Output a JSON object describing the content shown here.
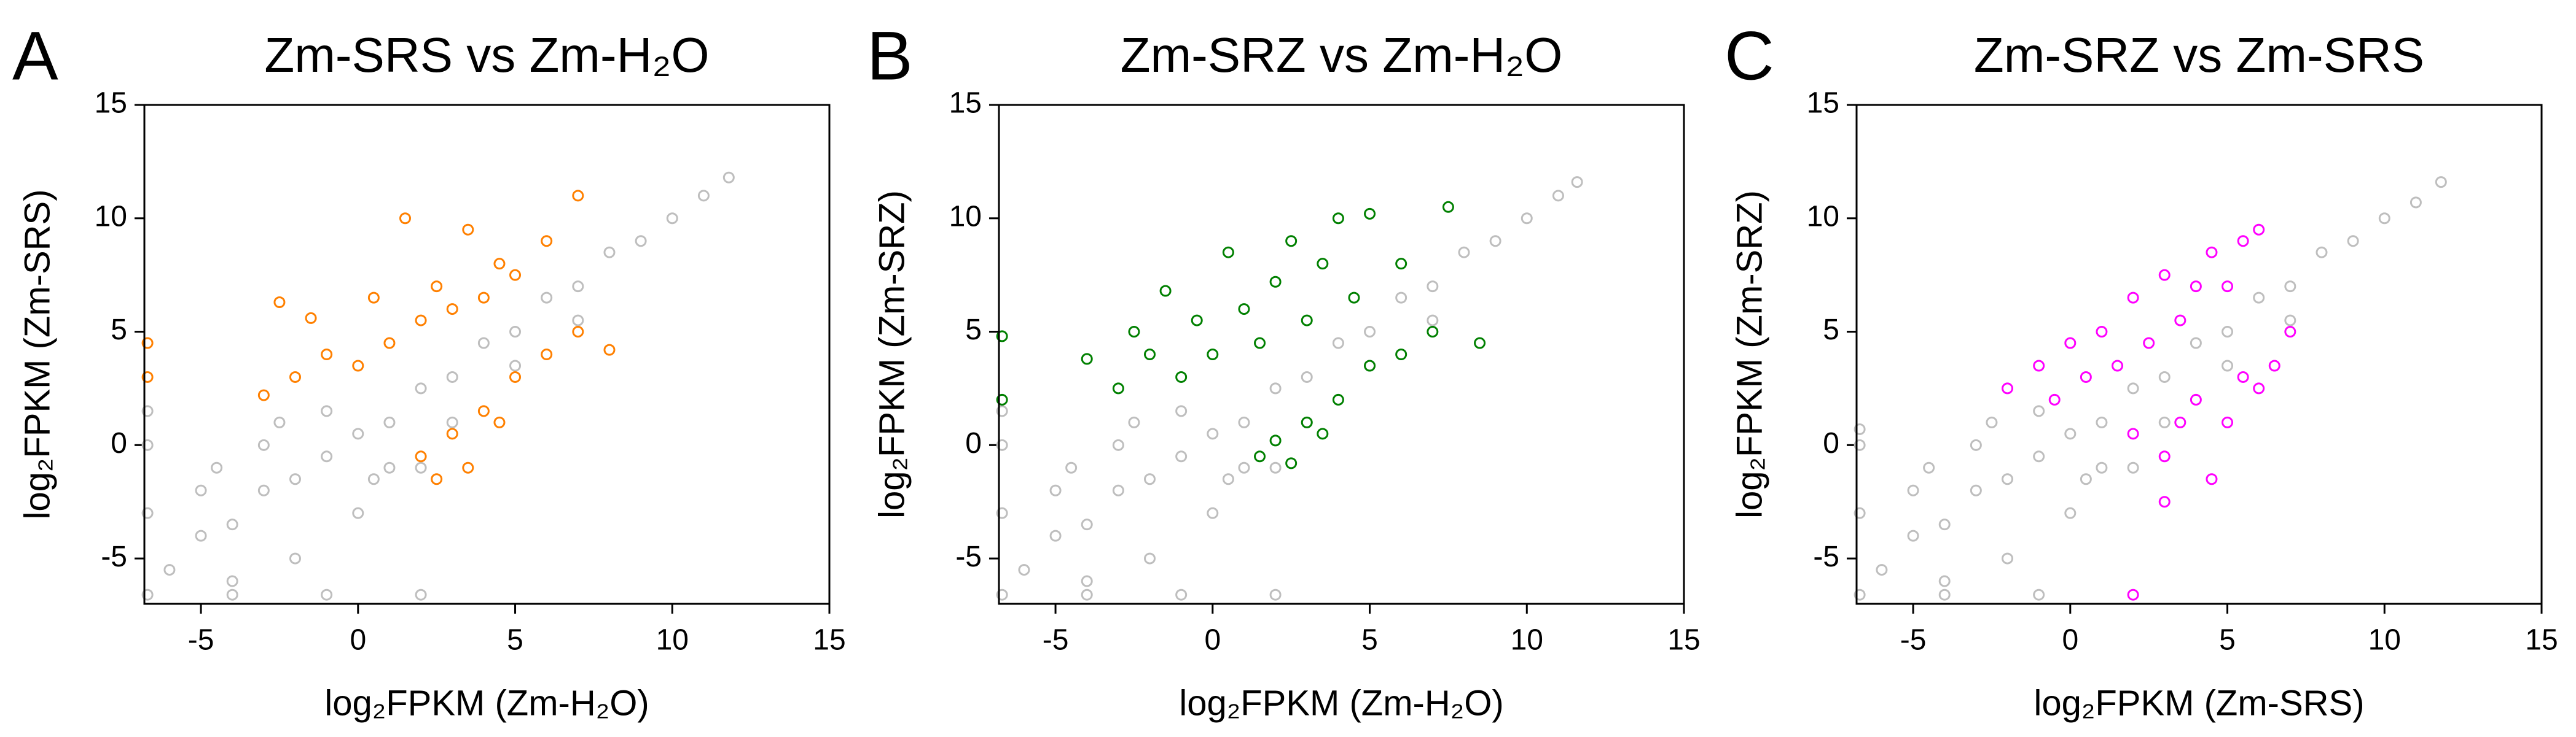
{
  "chart_data": [
    {
      "type": "scatter",
      "panel_label": "A",
      "title": "Zm-SRS vs Zm-H₂O",
      "xlabel": "log₂FPKM (Zm-H₂O)",
      "ylabel": "log₂FPKM (Zm-SRS)",
      "xlim": [
        -6.8,
        15
      ],
      "ylim": [
        -7,
        15
      ],
      "xticks": [
        -5,
        0,
        5,
        10,
        15
      ],
      "yticks": [
        -5,
        0,
        5,
        10,
        15
      ],
      "series": [
        {
          "color": "#bebebe",
          "x": [
            -6,
            -5,
            -4,
            -3,
            -2,
            -1,
            0,
            1,
            2,
            3,
            4,
            5,
            6,
            7,
            8,
            9,
            10,
            11,
            11.8,
            -5,
            -3,
            -1,
            1,
            3,
            -4,
            -2,
            0,
            2,
            -6.7,
            -4,
            -1,
            2,
            -6.7,
            -6.7,
            -6.7,
            5,
            7,
            -4.5,
            -2.5,
            0.5
          ],
          "values": [
            -5.5,
            -4,
            -3.5,
            -2,
            -1.5,
            -0.5,
            0.5,
            1,
            2.5,
            3,
            4.5,
            5,
            6.5,
            7,
            8.5,
            9,
            10,
            11,
            11.8,
            -2,
            0,
            1.5,
            -1,
            1,
            -6,
            -5,
            -3,
            -1,
            -6.6,
            -6.6,
            -6.6,
            -6.6,
            -3,
            0,
            1.5,
            3.5,
            5.5,
            -1,
            1,
            -1.5
          ]
        },
        {
          "color": "#ff8000",
          "x": [
            -3,
            -2,
            -1.5,
            -1,
            0,
            0.5,
            1,
            1.5,
            2,
            2.5,
            3,
            3.5,
            4,
            4.5,
            5,
            6,
            7,
            -6.7,
            -6.7,
            -2.5,
            2,
            3,
            4,
            5,
            6,
            7,
            8,
            3.5,
            2.5,
            4.5
          ],
          "values": [
            2.2,
            3,
            5.6,
            4,
            3.5,
            6.5,
            4.5,
            10,
            5.5,
            7,
            6,
            9.5,
            6.5,
            8,
            7.5,
            9,
            11,
            4.5,
            3,
            6.3,
            -0.5,
            0.5,
            1.5,
            3,
            4,
            5,
            4.2,
            -1,
            -1.5,
            1
          ]
        }
      ]
    },
    {
      "type": "scatter",
      "panel_label": "B",
      "title": "Zm-SRZ vs Zm-H₂O",
      "xlabel": "log₂FPKM (Zm-H₂O)",
      "ylabel": "log₂FPKM (Zm-SRZ)",
      "xlim": [
        -6.8,
        15
      ],
      "ylim": [
        -7,
        15
      ],
      "xticks": [
        -5,
        0,
        5,
        10,
        15
      ],
      "yticks": [
        -5,
        0,
        5,
        10,
        15
      ],
      "series": [
        {
          "color": "#bebebe",
          "x": [
            -6,
            -5,
            -4,
            -3,
            -2,
            -1,
            0,
            1,
            2,
            3,
            4,
            5,
            6,
            7,
            8,
            9,
            10,
            11,
            11.6,
            -5,
            -3,
            -1,
            1,
            3,
            -4,
            -2,
            0,
            2,
            -6.7,
            -4,
            -1,
            2,
            -6.7,
            -6.7,
            -6.7,
            5,
            7,
            -4.5,
            -2.5,
            0.5
          ],
          "values": [
            -5.5,
            -4,
            -3.5,
            -2,
            -1.5,
            -0.5,
            0.5,
            1,
            2.5,
            3,
            4.5,
            5,
            6.5,
            7,
            8.5,
            9,
            10,
            11,
            11.6,
            -2,
            0,
            1.5,
            -1,
            1,
            -6,
            -5,
            -3,
            -1,
            -6.6,
            -6.6,
            -6.6,
            -6.6,
            -3,
            0,
            1.5,
            3.5,
            5.5,
            -1,
            1,
            -1.5
          ]
        },
        {
          "color": "#008000",
          "x": [
            -4,
            -3,
            -2.5,
            -2,
            -1.5,
            -1,
            -0.5,
            0,
            0.5,
            1,
            1.5,
            2,
            2.5,
            3,
            3.5,
            4,
            4.5,
            5,
            6,
            7.5,
            -6.7,
            -6.7,
            1.5,
            2,
            3,
            4,
            5,
            6,
            7,
            8.5,
            2.5,
            3.5
          ],
          "values": [
            3.8,
            2.5,
            5,
            4,
            6.8,
            3,
            5.5,
            4,
            8.5,
            6,
            4.5,
            7.2,
            9,
            5.5,
            8,
            10,
            6.5,
            10.2,
            8,
            10.5,
            4.8,
            2,
            -0.5,
            0.2,
            1,
            2,
            3.5,
            4,
            5,
            4.5,
            -0.8,
            0.5
          ]
        }
      ]
    },
    {
      "type": "scatter",
      "panel_label": "C",
      "title": "Zm-SRZ vs Zm-SRS",
      "xlabel": "log₂FPKM (Zm-SRS)",
      "ylabel": "log₂FPKM (Zm-SRZ)",
      "xlim": [
        -6.8,
        15
      ],
      "ylim": [
        -7,
        15
      ],
      "xticks": [
        -5,
        0,
        5,
        10,
        15
      ],
      "yticks": [
        -5,
        0,
        5,
        10,
        15
      ],
      "series": [
        {
          "color": "#bebebe",
          "x": [
            -6,
            -5,
            -4,
            -3,
            -2,
            -1,
            0,
            1,
            2,
            3,
            4,
            5,
            6,
            7,
            8,
            9,
            10,
            11,
            11.8,
            -5,
            -3,
            -1,
            1,
            3,
            -4,
            -2,
            0,
            2,
            -6.7,
            -4,
            -1,
            -6.7,
            -6.7,
            -6.7,
            5,
            7,
            -4.5,
            -2.5,
            0.5
          ],
          "values": [
            -5.5,
            -4,
            -3.5,
            -2,
            -1.5,
            -0.5,
            0.5,
            1,
            2.5,
            3,
            4.5,
            5,
            6.5,
            7,
            8.5,
            9,
            10,
            10.7,
            11.6,
            -2,
            0,
            1.5,
            -1,
            1,
            -6,
            -5,
            -3,
            -1,
            -6.6,
            -6.6,
            -6.6,
            -3,
            0,
            0.7,
            3.5,
            5.5,
            -1,
            1,
            -1.5
          ]
        },
        {
          "color": "#ff00ff",
          "x": [
            -2,
            -1,
            -0.5,
            0,
            0.5,
            1,
            1.5,
            2,
            2.5,
            3,
            3.5,
            4,
            4.5,
            5,
            5.5,
            6,
            2,
            3,
            3.5,
            4,
            4.5,
            5,
            5.5,
            6,
            6.5,
            7,
            3,
            2
          ],
          "values": [
            2.5,
            3.5,
            2,
            4.5,
            3,
            5,
            3.5,
            6.5,
            4.5,
            7.5,
            5.5,
            7,
            8.5,
            7,
            9,
            9.5,
            0.5,
            -0.5,
            1,
            2,
            -1.5,
            1,
            3,
            2.5,
            3.5,
            5,
            -2.5,
            -6.6
          ]
        }
      ]
    }
  ]
}
